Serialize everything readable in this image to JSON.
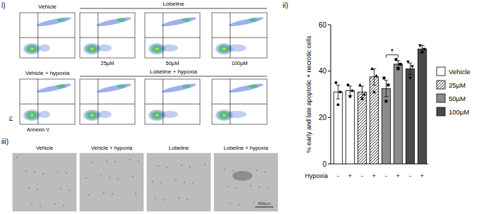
{
  "chart_data": {
    "type": "bar",
    "y_label": "% early and late apoptotic + necrotic cells",
    "x_label": "Hypoxia",
    "categories": [
      "-",
      "+",
      "-",
      "+",
      "-",
      "+",
      "-",
      "+"
    ],
    "ylim": [
      0,
      60
    ],
    "yticks": [
      0,
      20,
      40,
      60
    ],
    "legend": "right",
    "series": [
      {
        "name": "Vehicle",
        "color": "#ffffff",
        "marker": "circle",
        "values": [
          31,
          31.5,
          null,
          null,
          null,
          null,
          null,
          null
        ],
        "errors": [
          3,
          2,
          null,
          null,
          null,
          null,
          null,
          null
        ],
        "points": [
          [
            35,
            25.5,
            31
          ],
          [
            34,
            29,
            31.5
          ],
          null,
          null,
          null,
          null,
          null,
          null
        ]
      },
      {
        "name": "25µM",
        "color": "#ffffff",
        "line_style": "hatched",
        "marker": "triangle",
        "values": [
          null,
          null,
          31,
          37.5,
          null,
          null,
          null,
          null
        ],
        "errors": [
          null,
          null,
          2.5,
          3.5,
          null,
          null,
          null,
          null
        ],
        "points": [
          null,
          null,
          [
            34,
            28,
            30
          ],
          [
            41,
            31,
            38
          ],
          null,
          null,
          null,
          null
        ]
      },
      {
        "name": "50µM",
        "color": "#8c8c8c",
        "marker": "square",
        "values": [
          null,
          null,
          null,
          null,
          32.5,
          43,
          null,
          null
        ],
        "errors": [
          null,
          null,
          null,
          null,
          3.5,
          1.5,
          null,
          null
        ],
        "points": [
          null,
          null,
          null,
          null,
          [
            37,
            27,
            34
          ],
          [
            45,
            41,
            43
          ],
          null,
          null
        ]
      },
      {
        "name": "100µM",
        "color": "#4a4a4a",
        "marker": "triangle-down",
        "values": [
          null,
          null,
          null,
          null,
          null,
          null,
          41,
          49.5
        ],
        "errors": [
          null,
          null,
          null,
          null,
          null,
          null,
          2.5,
          1.5
        ],
        "points": [
          null,
          null,
          null,
          null,
          null,
          null,
          [
            44,
            37,
            42
          ],
          [
            51,
            48,
            49.5
          ]
        ]
      }
    ],
    "annotations": [
      {
        "text": "*",
        "from": 4,
        "to": 5,
        "y": 47
      }
    ]
  },
  "figure": {
    "panel_labels": [
      "i)",
      "ii)",
      "iii)"
    ],
    "flow": {
      "row1_titles": [
        "Vehicle",
        "Lobeline"
      ],
      "concentrations": [
        "25µM",
        "50µM",
        "100µM"
      ],
      "row2_titles": [
        "Vehicle + hypoxia",
        "Lobeline + hypoxia"
      ],
      "y_label": "PI",
      "x_label": "Annexin V"
    },
    "micrographs": {
      "labels": [
        "Vehicle",
        "Vehicle + hypoxia",
        "Lobeline",
        "Lobeline + hypoxia"
      ],
      "scale_bar": "400µm"
    }
  }
}
